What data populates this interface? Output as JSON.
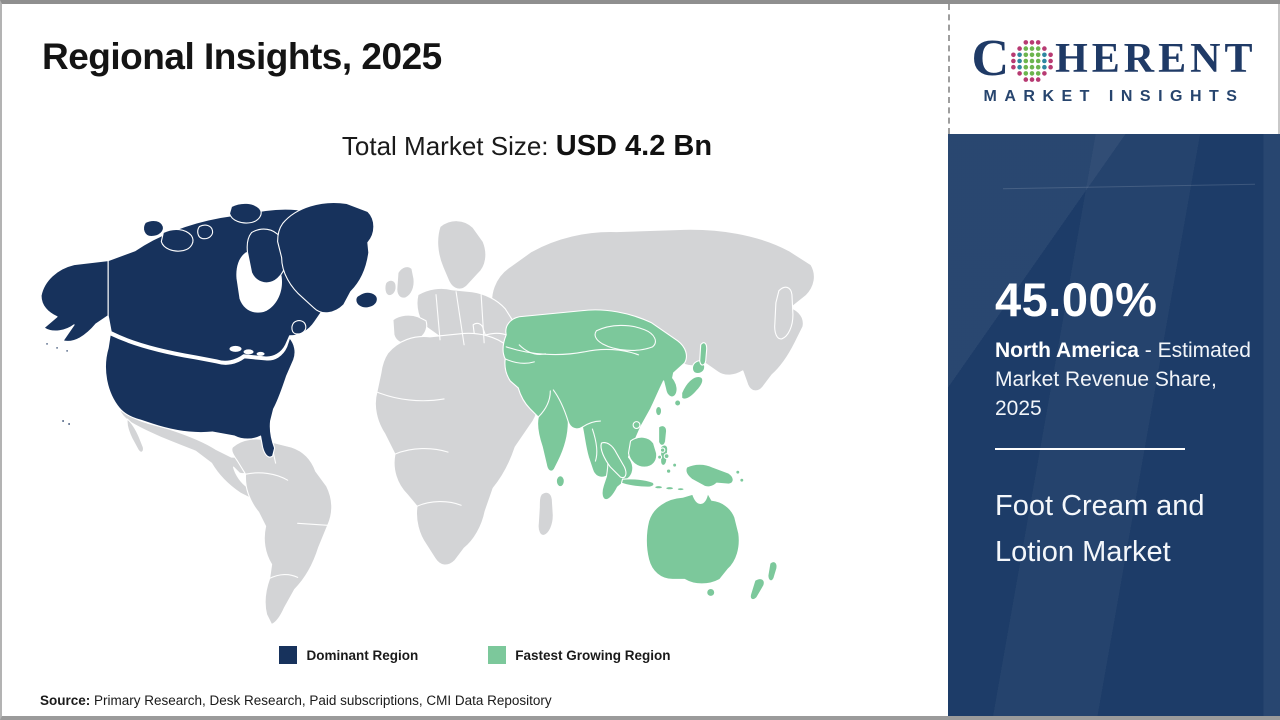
{
  "page": {
    "title": "Regional Insights, 2025",
    "subtitle_label": "Total Market Size: ",
    "subtitle_value": "USD 4.2 Bn",
    "source_label": "Source:",
    "source_text": " Primary Research, Desk Research, Paid subscriptions, CMI Data Repository"
  },
  "logo": {
    "brand_first_letter": "C",
    "brand_rest": "HERENT",
    "brand_sub": "MARKET INSIGHTS",
    "globe_colors": {
      "outer": "#b73a72",
      "inner": "#2f86a0",
      "center": "#6cb54e"
    }
  },
  "legend": [
    {
      "label": "Dominant Region",
      "color": "#17325c"
    },
    {
      "label": "Fastest Growing Region",
      "color": "#7cc89b"
    }
  ],
  "sidebar": {
    "share_value": "45.00%",
    "region_name": "North America",
    "region_desc": " - Estimated Market Revenue Share, 2025",
    "market_name": "Foot Cream and Lotion Market"
  },
  "map": {
    "dominant_color": "#17325c",
    "growing_color": "#7cc89b",
    "other_color": "#d3d4d6",
    "regions": [
      {
        "name": "North America",
        "status": "dominant"
      },
      {
        "name": "Asia Pacific",
        "status": "fastest-growing"
      },
      {
        "name": "Rest of World",
        "status": "other"
      }
    ]
  }
}
